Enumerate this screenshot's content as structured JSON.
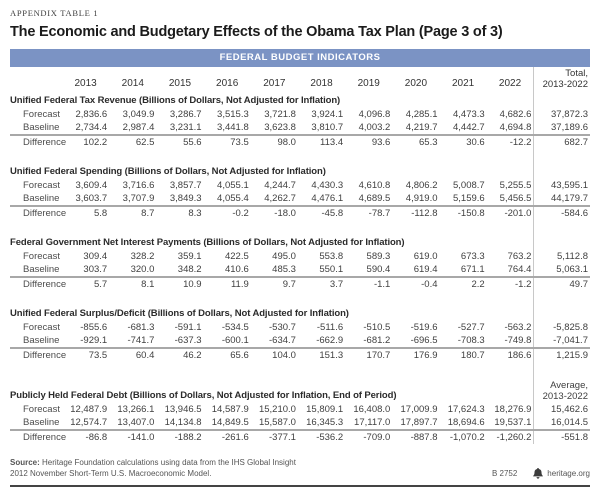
{
  "page": {
    "eyebrow": "APPENDIX TABLE 1",
    "title": "The Economic and Budgetary Effects of the Obama Tax Plan (Page 3 of 3)",
    "banner": "FEDERAL BUDGET INDICATORS",
    "accent_color": "#7b93c4"
  },
  "table": {
    "years": [
      "2013",
      "2014",
      "2015",
      "2016",
      "2017",
      "2018",
      "2019",
      "2020",
      "2021",
      "2022"
    ],
    "total_header": {
      "line1": "Total,",
      "line2": "2013-2022"
    },
    "sections": [
      {
        "title": "Unified Federal Tax Revenue (Billions of Dollars, Not Adjusted for Inflation)",
        "rows": [
          {
            "label": "Forecast",
            "values": [
              "2,836.6",
              "3,049.9",
              "3,286.7",
              "3,515.3",
              "3,721.8",
              "3,924.1",
              "4,096.8",
              "4,285.1",
              "4,473.3",
              "4,682.6"
            ],
            "total": "37,872.3"
          },
          {
            "label": "Baseline",
            "values": [
              "2,734.4",
              "2,987.4",
              "3,231.1",
              "3,441.8",
              "3,623.8",
              "3,810.7",
              "4,003.2",
              "4,219.7",
              "4,442.7",
              "4,694.8"
            ],
            "total": "37,189.6"
          },
          {
            "label": "Difference",
            "values": [
              "102.2",
              "62.5",
              "55.6",
              "73.5",
              "98.0",
              "113.4",
              "93.6",
              "65.3",
              "30.6",
              "-12.2"
            ],
            "total": "682.7"
          }
        ]
      },
      {
        "title": "Unified Federal Spending (Billions of Dollars, Not Adjusted for Inflation)",
        "rows": [
          {
            "label": "Forecast",
            "values": [
              "3,609.4",
              "3,716.6",
              "3,857.7",
              "4,055.1",
              "4,244.7",
              "4,430.3",
              "4,610.8",
              "4,806.2",
              "5,008.7",
              "5,255.5"
            ],
            "total": "43,595.1"
          },
          {
            "label": "Baseline",
            "values": [
              "3,603.7",
              "3,707.9",
              "3,849.3",
              "4,055.4",
              "4,262.7",
              "4,476.1",
              "4,689.5",
              "4,919.0",
              "5,159.6",
              "5,456.5"
            ],
            "total": "44,179.7"
          },
          {
            "label": "Difference",
            "values": [
              "5.8",
              "8.7",
              "8.3",
              "-0.2",
              "-18.0",
              "-45.8",
              "-78.7",
              "-112.8",
              "-150.8",
              "-201.0"
            ],
            "total": "-584.6"
          }
        ]
      },
      {
        "title": "Federal Government Net Interest Payments (Billions of Dollars, Not Adjusted for Inflation)",
        "rows": [
          {
            "label": "Forecast",
            "values": [
              "309.4",
              "328.2",
              "359.1",
              "422.5",
              "495.0",
              "553.8",
              "589.3",
              "619.0",
              "673.3",
              "763.2"
            ],
            "total": "5,112.8"
          },
          {
            "label": "Baseline",
            "values": [
              "303.7",
              "320.0",
              "348.2",
              "410.6",
              "485.3",
              "550.1",
              "590.4",
              "619.4",
              "671.1",
              "764.4"
            ],
            "total": "5,063.1"
          },
          {
            "label": "Difference",
            "values": [
              "5.7",
              "8.1",
              "10.9",
              "11.9",
              "9.7",
              "3.7",
              "-1.1",
              "-0.4",
              "2.2",
              "-1.2"
            ],
            "total": "49.7"
          }
        ]
      },
      {
        "title": "Unified Federal Surplus/Deficit (Billions of Dollars, Not Adjusted for Inflation)",
        "rows": [
          {
            "label": "Forecast",
            "values": [
              "-855.6",
              "-681.3",
              "-591.1",
              "-534.5",
              "-530.7",
              "-511.6",
              "-510.5",
              "-519.6",
              "-527.7",
              "-563.2"
            ],
            "total": "-5,825.8"
          },
          {
            "label": "Baseline",
            "values": [
              "-929.1",
              "-741.7",
              "-637.3",
              "-600.1",
              "-634.7",
              "-662.9",
              "-681.2",
              "-696.5",
              "-708.3",
              "-749.8"
            ],
            "total": "-7,041.7"
          },
          {
            "label": "Difference",
            "values": [
              "73.5",
              "60.4",
              "46.2",
              "65.6",
              "104.0",
              "151.3",
              "170.7",
              "176.9",
              "180.7",
              "186.6"
            ],
            "total": "1,215.9"
          }
        ]
      },
      {
        "title": "Publicly Held Federal Debt (Billions of Dollars, Not Adjusted for Inflation, End of Period)",
        "col_header": {
          "line1": "Average,",
          "line2": "2013-2022"
        },
        "rows": [
          {
            "label": "Forecast",
            "values": [
              "12,487.9",
              "13,266.1",
              "13,946.5",
              "14,587.9",
              "15,210.0",
              "15,809.1",
              "16,408.0",
              "17,009.9",
              "17,624.3",
              "18,276.9"
            ],
            "total": "15,462.6"
          },
          {
            "label": "Baseline",
            "values": [
              "12,574.7",
              "13,407.0",
              "14,134.8",
              "14,849.5",
              "15,587.0",
              "16,345.3",
              "17,117.0",
              "17,897.7",
              "18,694.6",
              "19,537.1"
            ],
            "total": "16,014.5"
          },
          {
            "label": "Difference",
            "values": [
              "-86.8",
              "-141.0",
              "-188.2",
              "-261.6",
              "-377.1",
              "-536.2",
              "-709.0",
              "-887.8",
              "-1,070.2",
              "-1,260.2"
            ],
            "total": "-551.8"
          }
        ]
      }
    ]
  },
  "footer": {
    "source_label": "Source:",
    "source_line1": " Heritage Foundation calculations using data from the IHS Global Insight",
    "source_line2": "2012 November Short-Term U.S. Macroeconomic Model.",
    "report_id": "B 2752",
    "site": "heritage.org"
  }
}
